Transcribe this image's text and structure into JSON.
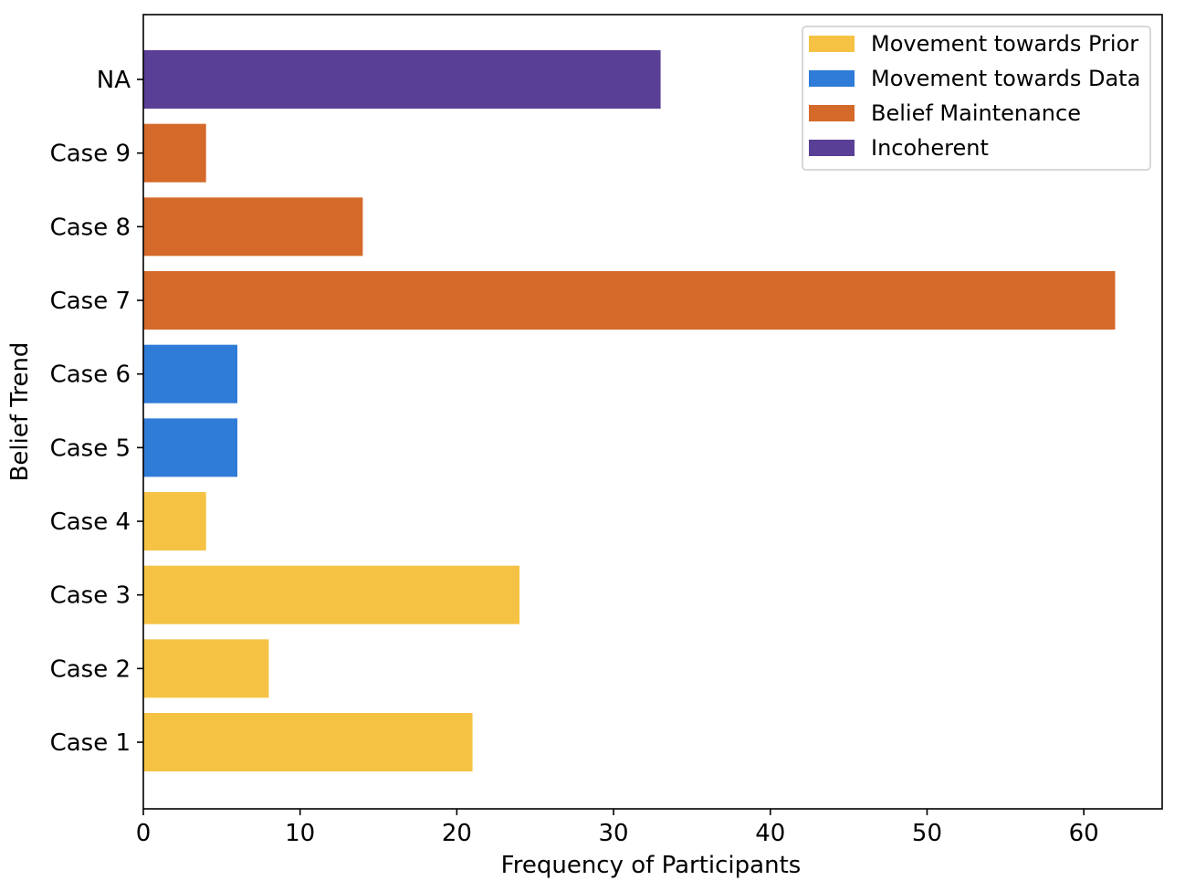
{
  "chart_data": {
    "type": "bar",
    "orientation": "horizontal",
    "title": "",
    "xlabel": "Frequency of Participants",
    "ylabel": "Belief Trend",
    "xlim": [
      0,
      65
    ],
    "xticks": [
      0,
      10,
      20,
      30,
      40,
      50,
      60
    ],
    "grid": false,
    "legend_position": "top-right",
    "categories": [
      "Case 1",
      "Case 2",
      "Case 3",
      "Case 4",
      "Case 5",
      "Case 6",
      "Case 7",
      "Case 8",
      "Case 9",
      "NA"
    ],
    "values": [
      21,
      8,
      24,
      4,
      6,
      6,
      62,
      14,
      4,
      33
    ],
    "bar_groups": [
      "Movement towards Prior",
      "Movement towards Prior",
      "Movement towards Prior",
      "Movement towards Prior",
      "Movement towards Data",
      "Movement towards Data",
      "Belief Maintenance",
      "Belief Maintenance",
      "Belief Maintenance",
      "Incoherent"
    ],
    "legend": [
      {
        "name": "Movement towards Prior",
        "color": "#F5C243"
      },
      {
        "name": "Movement towards Data",
        "color": "#2F7BD8"
      },
      {
        "name": "Belief Maintenance",
        "color": "#D4692A"
      },
      {
        "name": "Incoherent",
        "color": "#5A3F96"
      }
    ]
  }
}
